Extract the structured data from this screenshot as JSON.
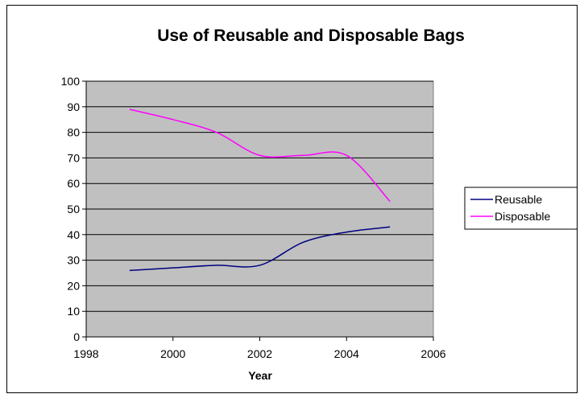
{
  "chart_data": {
    "type": "line",
    "title": "Use of Reusable and Disposable Bags",
    "xlabel": "Year",
    "ylabel": "",
    "xlim": [
      1998,
      2006
    ],
    "ylim": [
      0,
      100
    ],
    "x_ticks": [
      1998,
      2000,
      2002,
      2004,
      2006
    ],
    "y_ticks": [
      0,
      10,
      20,
      30,
      40,
      50,
      60,
      70,
      80,
      90,
      100
    ],
    "x_tick_labels": [
      "1998",
      "2000",
      "2002",
      "2004",
      "2006"
    ],
    "y_tick_labels": [
      "0",
      "10",
      "20",
      "30",
      "40",
      "50",
      "60",
      "70",
      "80",
      "90",
      "100"
    ],
    "grid": true,
    "legend_position": "right",
    "plot_background": "#c0c0c0",
    "x": [
      1999,
      2000,
      2001,
      2002,
      2003,
      2004,
      2005
    ],
    "series": [
      {
        "name": "Reusable",
        "color": "#000080",
        "values": [
          26,
          27,
          28,
          28,
          37,
          41,
          43
        ]
      },
      {
        "name": "Disposable",
        "color": "#ff00ff",
        "values": [
          89,
          85,
          80,
          71,
          71,
          71,
          53
        ]
      }
    ]
  }
}
